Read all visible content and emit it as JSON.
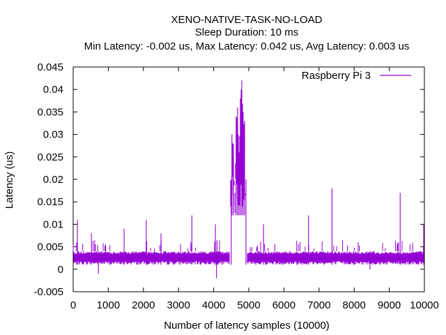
{
  "chart_data": {
    "type": "line",
    "title_lines": [
      "XENO-NATIVE-TASK-NO-LOAD",
      "Sleep Duration: 10 ms",
      "Min Latency: -0.002 us, Max Latency: 0.042 us, Avg Latency: 0.003 us"
    ],
    "xlabel": "Number of latency samples (10000)",
    "ylabel": "Latency (us)",
    "xlim": [
      0,
      10000
    ],
    "ylim": [
      -0.005,
      0.045
    ],
    "xticks": [
      "0",
      "1000",
      "2000",
      "3000",
      "4000",
      "5000",
      "6000",
      "7000",
      "8000",
      "9000",
      "10000"
    ],
    "yticks": [
      "-0.005",
      "0",
      "0.005",
      "0.01",
      "0.015",
      "0.02",
      "0.025",
      "0.03",
      "0.035",
      "0.04",
      "0.045"
    ],
    "legend_position": "top-right",
    "series": [
      {
        "name": "Raspberry Pi 3",
        "color": "#9400d3",
        "baseline_band": [
          0.001,
          0.004
        ],
        "spikes": [
          {
            "x": 120,
            "y": 0.011
          },
          {
            "x": 520,
            "y": 0.008
          },
          {
            "x": 720,
            "y": -0.001
          },
          {
            "x": 1450,
            "y": 0.009
          },
          {
            "x": 2080,
            "y": 0.011
          },
          {
            "x": 2500,
            "y": 0.008
          },
          {
            "x": 3380,
            "y": 0.012
          },
          {
            "x": 4050,
            "y": 0.01
          },
          {
            "x": 4080,
            "y": -0.002
          },
          {
            "x": 5420,
            "y": 0.01
          },
          {
            "x": 6700,
            "y": 0.012
          },
          {
            "x": 7370,
            "y": 0.018
          },
          {
            "x": 8450,
            "y": 0.0
          },
          {
            "x": 9310,
            "y": 0.017
          },
          {
            "x": 9980,
            "y": 0.01
          }
        ],
        "burst": {
          "x_range": [
            4500,
            4920
          ],
          "points": [
            {
              "x": 4520,
              "y": 0.03
            },
            {
              "x": 4560,
              "y": 0.028
            },
            {
              "x": 4600,
              "y": 0.012
            },
            {
              "x": 4640,
              "y": 0.034
            },
            {
              "x": 4680,
              "y": 0.036
            },
            {
              "x": 4720,
              "y": 0.026
            },
            {
              "x": 4760,
              "y": 0.038
            },
            {
              "x": 4800,
              "y": 0.042
            },
            {
              "x": 4840,
              "y": 0.035
            },
            {
              "x": 4880,
              "y": 0.033
            },
            {
              "x": 4910,
              "y": 0.012
            }
          ]
        }
      }
    ]
  }
}
